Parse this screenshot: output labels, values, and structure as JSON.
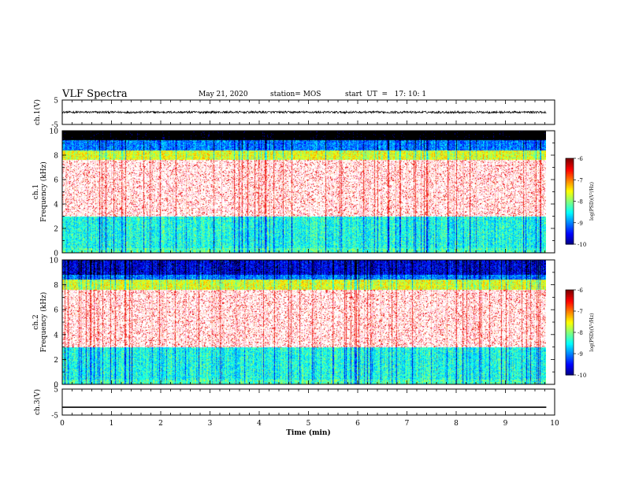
{
  "header": {
    "title": "VLF Spectra",
    "date": "May 21, 2020",
    "station": "station= MOS",
    "start": "start  UT  =   17: 10: 1"
  },
  "chart_data": {
    "type": "heatmap",
    "x_axis": {
      "label": "Time  (min)",
      "range": [
        0,
        10
      ],
      "ticks": [
        "0",
        "1",
        "2",
        "3",
        "4",
        "5",
        "6",
        "7",
        "8",
        "9",
        "10"
      ]
    },
    "panels": [
      {
        "id": "ch1-waveform",
        "type": "line",
        "ylabel": "ch.1(V)",
        "ylim": [
          -5,
          5
        ],
        "yticks": [
          "5",
          "-5"
        ],
        "level": 0,
        "noise": "small",
        "data_end_min": 9.83
      },
      {
        "id": "ch1-spectrogram",
        "type": "heatmap",
        "ylabel": "ch.1\nFrequency (kHz)",
        "ylim": [
          0,
          10
        ],
        "yticks": [
          "0",
          "2",
          "4",
          "6",
          "8",
          "10"
        ],
        "data_end_min": 9.83,
        "bands_khz": [
          {
            "from": 0.0,
            "to": 0.4,
            "level": -8.2
          },
          {
            "from": 0.4,
            "to": 3.0,
            "level": -8.4
          },
          {
            "from": 3.0,
            "to": 7.6,
            "level": -6.5
          },
          {
            "from": 7.6,
            "to": 8.4,
            "level": -7.6
          },
          {
            "from": 8.4,
            "to": 9.2,
            "level": -9.0
          },
          {
            "from": 9.2,
            "to": 10.0,
            "level": -10.5
          }
        ]
      },
      {
        "id": "ch2-spectrogram",
        "type": "heatmap",
        "ylabel": "ch.2\nFrequency (kHz)",
        "ylim": [
          0,
          10
        ],
        "yticks": [
          "0",
          "2",
          "4",
          "6",
          "8",
          "10"
        ],
        "data_end_min": 9.83,
        "bands_khz": [
          {
            "from": 0.0,
            "to": 0.4,
            "level": -8.2
          },
          {
            "from": 0.4,
            "to": 3.0,
            "level": -8.4
          },
          {
            "from": 3.0,
            "to": 7.6,
            "level": -6.5
          },
          {
            "from": 7.6,
            "to": 8.4,
            "level": -7.6
          },
          {
            "from": 8.4,
            "to": 8.8,
            "level": -9.0
          },
          {
            "from": 8.8,
            "to": 10.0,
            "level": -9.6
          }
        ]
      },
      {
        "id": "ch3-waveform",
        "type": "line",
        "ylabel": "ch.3(V)",
        "ylim": [
          -5,
          5
        ],
        "yticks": [
          "5",
          "-5"
        ],
        "level": -2,
        "noise": "none",
        "data_end_min": 9.83
      }
    ],
    "colorbar": {
      "label": "log(PSD)(V²/Hz)",
      "range": [
        -10,
        -6
      ],
      "ticks": [
        "-6",
        "-7",
        "-8",
        "-9",
        "-10"
      ]
    }
  },
  "colors": {
    "axis": "#000000",
    "background": "#ffffff"
  }
}
